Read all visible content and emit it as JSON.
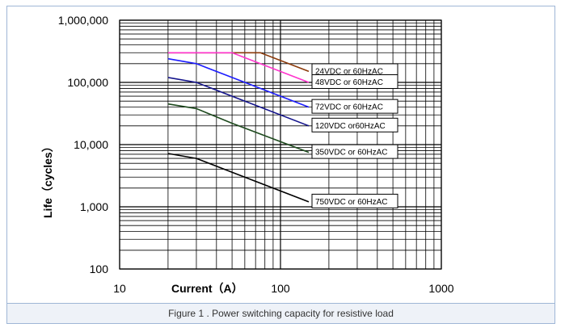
{
  "caption": "Figure 1 . Power switching capacity for resistive load",
  "chart_data": {
    "type": "line",
    "title": "",
    "xlabel": "Current（A）",
    "ylabel": "Life（cycles）",
    "xscale": "log",
    "yscale": "log",
    "xlim": [
      10,
      1000
    ],
    "ylim": [
      100,
      1000000
    ],
    "grid": true,
    "x_ticks": [
      {
        "value": 10,
        "label": "10"
      },
      {
        "value": 100,
        "label": "100"
      },
      {
        "value": 1000,
        "label": "1000"
      }
    ],
    "y_ticks": [
      {
        "value": 100,
        "label": "100"
      },
      {
        "value": 1000,
        "label": "1,000"
      },
      {
        "value": 10000,
        "label": "10,000"
      },
      {
        "value": 100000,
        "label": "100,000"
      },
      {
        "value": 1000000,
        "label": "1,000,000"
      }
    ],
    "series": [
      {
        "name": "24VDC or 60HzAC",
        "color": "#8b3a0a",
        "points": [
          [
            20,
            300000
          ],
          [
            75,
            300000
          ],
          [
            150,
            150000
          ]
        ]
      },
      {
        "name": "48VDC or 60HzAC",
        "color": "#ff33cc",
        "points": [
          [
            20,
            300000
          ],
          [
            50,
            300000
          ],
          [
            150,
            100000
          ]
        ]
      },
      {
        "name": "72VDC or 60HzAC",
        "color": "#1c1cff",
        "points": [
          [
            20,
            240000
          ],
          [
            30,
            200000
          ],
          [
            50,
            120000
          ],
          [
            150,
            40000
          ]
        ]
      },
      {
        "name": "120VDC or60HzAC",
        "color": "#14148c",
        "points": [
          [
            20,
            120000
          ],
          [
            30,
            100000
          ],
          [
            50,
            60000
          ],
          [
            150,
            20000
          ]
        ]
      },
      {
        "name": "350VDC or 60HzAC",
        "color": "#1e4a1e",
        "points": [
          [
            20,
            45000
          ],
          [
            30,
            38000
          ],
          [
            50,
            22000
          ],
          [
            150,
            7500
          ]
        ]
      },
      {
        "name": "750VDC or 60HzAC",
        "color": "#000000",
        "points": [
          [
            20,
            7200
          ],
          [
            30,
            6000
          ],
          [
            50,
            3600
          ],
          [
            150,
            1200
          ]
        ]
      }
    ]
  }
}
